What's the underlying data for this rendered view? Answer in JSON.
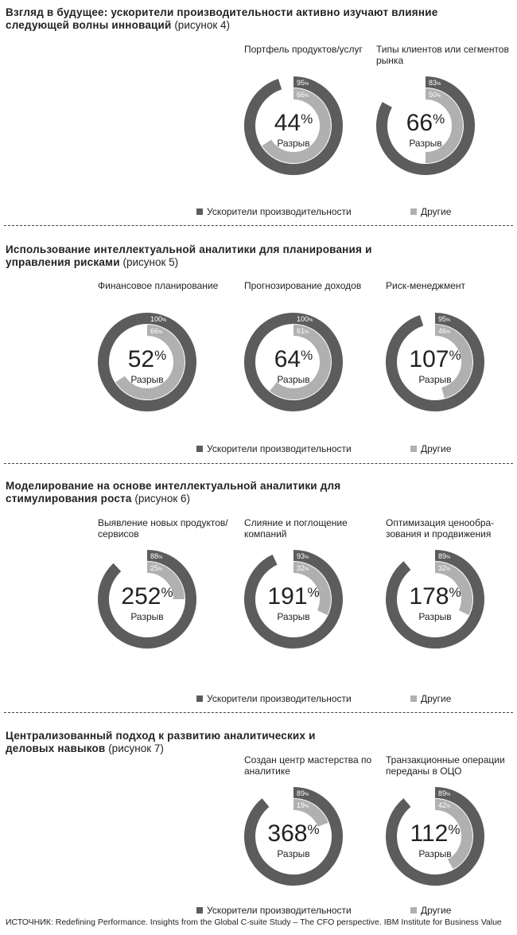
{
  "colors": {
    "accelerators": "#5c5c5c",
    "others": "#b0b0b0",
    "track": "#ffffff"
  },
  "legend": {
    "accelerators": "Ускорители производительности",
    "others": "Другие"
  },
  "source": "ИСТОЧНИК: Redefining Performance. Insights from the Global C-suite Study – The CFO perspective. IBM Institute for Business Value",
  "gap_label": "Разрыв",
  "sections": [
    {
      "id": "fig4",
      "title_bold": "Взгляд в будущее: ускорители производительности активно изучают влияние следующей волны инноваций",
      "title_rest": " (рисунок 4)"
    },
    {
      "id": "fig5",
      "title_bold": "Использование интеллектуальной аналитики для планирования и управления рисками",
      "title_rest": " (рисунок 5)"
    },
    {
      "id": "fig6",
      "title_bold": "Моделирование на основе интеллектуальной аналитики для стимулирования роста",
      "title_rest": " (рисунок 6)"
    },
    {
      "id": "fig7",
      "title_bold": "Централизованный подход к развитию аналитических и деловых навыков",
      "title_rest": " (рисунок 7)"
    }
  ],
  "chart_data": [
    {
      "type": "pie",
      "figure": "рисунок 4",
      "series": [
        {
          "name": "Портфель продуктов/услуг",
          "accelerators": 95,
          "others": 66,
          "gap": 44
        },
        {
          "name": "Типы клиентов или сегментов рынка",
          "accelerators": 83,
          "others": 50,
          "gap": 66
        }
      ]
    },
    {
      "type": "pie",
      "figure": "рисунок 5",
      "series": [
        {
          "name": "Финансовое планирование",
          "accelerators": 100,
          "others": 66,
          "gap": 52
        },
        {
          "name": "Прогнозирование доходов",
          "accelerators": 100,
          "others": 61,
          "gap": 64
        },
        {
          "name": "Риск-менеджмент",
          "accelerators": 95,
          "others": 46,
          "gap": 107
        }
      ]
    },
    {
      "type": "pie",
      "figure": "рисунок 6",
      "series": [
        {
          "name": "Выявление новых продуктов/сервисов",
          "accelerators": 88,
          "others": 25,
          "gap": 252
        },
        {
          "name": "Слияние и поглощение компаний",
          "accelerators": 93,
          "others": 32,
          "gap": 191
        },
        {
          "name": "Оптимизация ценообра-зования и продвижения",
          "accelerators": 89,
          "others": 32,
          "gap": 178
        }
      ]
    },
    {
      "type": "pie",
      "figure": "рисунок 7",
      "series": [
        {
          "name": "Создан центр мастерства по аналитике",
          "accelerators": 89,
          "others": 19,
          "gap": 368
        },
        {
          "name": "Транзакционные операции переданы в ОЦО",
          "accelerators": 89,
          "others": 42,
          "gap": 112
        }
      ]
    }
  ]
}
